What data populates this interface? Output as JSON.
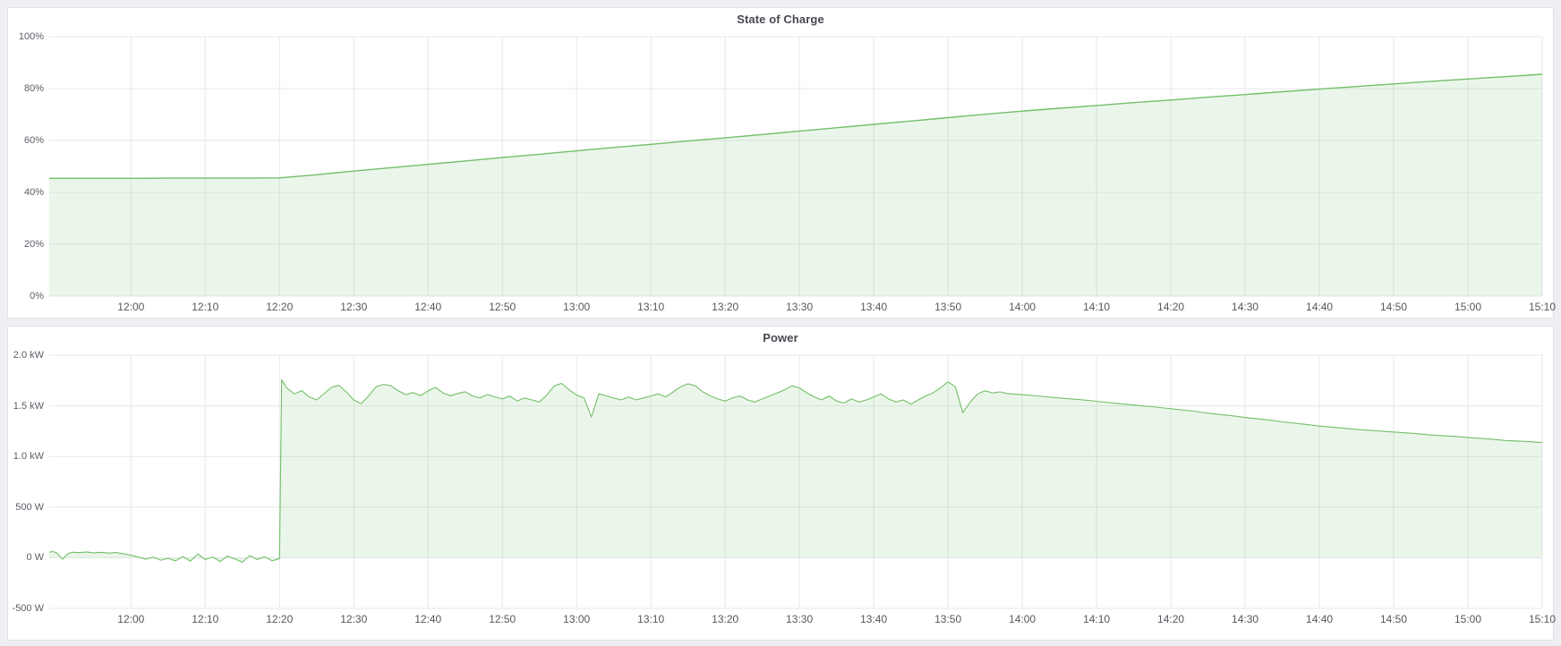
{
  "panels": [
    {
      "title": "State of Charge"
    },
    {
      "title": "Power"
    }
  ],
  "colors": {
    "series_green": "#73bf69",
    "series_fill": "rgba(115,191,105,0.14)",
    "grid": "#e6e7ea",
    "axis_text": "#5a5e66",
    "page_background": "#edeff4",
    "panel_background": "#ffffff"
  },
  "chart_data": [
    {
      "type": "area",
      "title": "State of Charge",
      "xlabel": "",
      "ylabel": "",
      "ylim": [
        0,
        100
      ],
      "x_range_minutes": [
        709,
        910
      ],
      "grid": true,
      "legend": "none",
      "y_ticks": [
        {
          "value": 0,
          "label": "0%"
        },
        {
          "value": 20,
          "label": "20%"
        },
        {
          "value": 40,
          "label": "40%"
        },
        {
          "value": 60,
          "label": "60%"
        },
        {
          "value": 80,
          "label": "80%"
        },
        {
          "value": 100,
          "label": "100%"
        }
      ],
      "x_ticks": [
        {
          "minute": 720,
          "label": "12:00"
        },
        {
          "minute": 730,
          "label": "12:10"
        },
        {
          "minute": 740,
          "label": "12:20"
        },
        {
          "minute": 750,
          "label": "12:30"
        },
        {
          "minute": 760,
          "label": "12:40"
        },
        {
          "minute": 770,
          "label": "12:50"
        },
        {
          "minute": 780,
          "label": "13:00"
        },
        {
          "minute": 790,
          "label": "13:10"
        },
        {
          "minute": 800,
          "label": "13:20"
        },
        {
          "minute": 810,
          "label": "13:30"
        },
        {
          "minute": 820,
          "label": "13:40"
        },
        {
          "minute": 830,
          "label": "13:50"
        },
        {
          "minute": 840,
          "label": "14:00"
        },
        {
          "minute": 850,
          "label": "14:10"
        },
        {
          "minute": 860,
          "label": "14:20"
        },
        {
          "minute": 870,
          "label": "14:30"
        },
        {
          "minute": 880,
          "label": "14:40"
        },
        {
          "minute": 890,
          "label": "14:50"
        },
        {
          "minute": 900,
          "label": "15:00"
        },
        {
          "minute": 910,
          "label": "15:10"
        }
      ],
      "series": [
        {
          "name": "State of Charge",
          "color": "#73bf69",
          "fill": "rgba(115,191,105,0.14)",
          "fill_baseline": 0,
          "points": [
            [
              709,
              45.4
            ],
            [
              715,
              45.4
            ],
            [
              720,
              45.4
            ],
            [
              725,
              45.5
            ],
            [
              730,
              45.5
            ],
            [
              735,
              45.5
            ],
            [
              740,
              45.6
            ],
            [
              745,
              46.8
            ],
            [
              750,
              48.2
            ],
            [
              755,
              49.5
            ],
            [
              760,
              50.8
            ],
            [
              765,
              52.1
            ],
            [
              770,
              53.4
            ],
            [
              775,
              54.7
            ],
            [
              780,
              56.0
            ],
            [
              785,
              57.3
            ],
            [
              790,
              58.5
            ],
            [
              795,
              59.8
            ],
            [
              800,
              61.0
            ],
            [
              805,
              62.3
            ],
            [
              810,
              63.6
            ],
            [
              815,
              64.9
            ],
            [
              820,
              66.2
            ],
            [
              825,
              67.5
            ],
            [
              830,
              68.8
            ],
            [
              835,
              70.1
            ],
            [
              840,
              71.3
            ],
            [
              845,
              72.4
            ],
            [
              850,
              73.5
            ],
            [
              855,
              74.6
            ],
            [
              860,
              75.6
            ],
            [
              865,
              76.7
            ],
            [
              870,
              77.7
            ],
            [
              875,
              78.8
            ],
            [
              880,
              79.8
            ],
            [
              885,
              80.8
            ],
            [
              890,
              81.8
            ],
            [
              895,
              82.8
            ],
            [
              900,
              83.7
            ],
            [
              905,
              84.6
            ],
            [
              910,
              85.5
            ]
          ]
        }
      ]
    },
    {
      "type": "area",
      "title": "Power",
      "xlabel": "",
      "ylabel": "",
      "ylim": [
        -500,
        2000
      ],
      "x_range_minutes": [
        709,
        910
      ],
      "grid": true,
      "legend": "none",
      "y_ticks": [
        {
          "value": -500,
          "label": "-500 W"
        },
        {
          "value": 0,
          "label": "0 W"
        },
        {
          "value": 500,
          "label": "500 W"
        },
        {
          "value": 1000,
          "label": "1.0 kW"
        },
        {
          "value": 1500,
          "label": "1.5 kW"
        },
        {
          "value": 2000,
          "label": "2.0 kW"
        }
      ],
      "x_ticks": [
        {
          "minute": 720,
          "label": "12:00"
        },
        {
          "minute": 730,
          "label": "12:10"
        },
        {
          "minute": 740,
          "label": "12:20"
        },
        {
          "minute": 750,
          "label": "12:30"
        },
        {
          "minute": 760,
          "label": "12:40"
        },
        {
          "minute": 770,
          "label": "12:50"
        },
        {
          "minute": 780,
          "label": "13:00"
        },
        {
          "minute": 790,
          "label": "13:10"
        },
        {
          "minute": 800,
          "label": "13:20"
        },
        {
          "minute": 810,
          "label": "13:30"
        },
        {
          "minute": 820,
          "label": "13:40"
        },
        {
          "minute": 830,
          "label": "13:50"
        },
        {
          "minute": 840,
          "label": "14:00"
        },
        {
          "minute": 850,
          "label": "14:10"
        },
        {
          "minute": 860,
          "label": "14:20"
        },
        {
          "minute": 870,
          "label": "14:30"
        },
        {
          "minute": 880,
          "label": "14:40"
        },
        {
          "minute": 890,
          "label": "14:50"
        },
        {
          "minute": 900,
          "label": "15:00"
        },
        {
          "minute": 910,
          "label": "15:10"
        }
      ],
      "series": [
        {
          "name": "Power",
          "color": "#73bf69",
          "fill": "rgba(115,191,105,0.14)",
          "fill_baseline": 0,
          "points": [
            [
              709,
              55
            ],
            [
              709.5,
              62
            ],
            [
              710,
              48
            ],
            [
              710.8,
              -14
            ],
            [
              711.5,
              40
            ],
            [
              712,
              55
            ],
            [
              713,
              50
            ],
            [
              714,
              57
            ],
            [
              715,
              49
            ],
            [
              716,
              54
            ],
            [
              717,
              46
            ],
            [
              718,
              52
            ],
            [
              719,
              40
            ],
            [
              720,
              26
            ],
            [
              721,
              6
            ],
            [
              722,
              -14
            ],
            [
              723,
              6
            ],
            [
              724,
              -24
            ],
            [
              725,
              -6
            ],
            [
              726,
              -30
            ],
            [
              727,
              12
            ],
            [
              728,
              -34
            ],
            [
              729,
              38
            ],
            [
              730,
              -18
            ],
            [
              731,
              8
            ],
            [
              732,
              -38
            ],
            [
              733,
              18
            ],
            [
              734,
              -12
            ],
            [
              735,
              -44
            ],
            [
              736,
              22
            ],
            [
              737,
              -18
            ],
            [
              738,
              10
            ],
            [
              739,
              -30
            ],
            [
              740,
              -8
            ],
            [
              740.3,
              1758
            ],
            [
              741,
              1675
            ],
            [
              742,
              1618
            ],
            [
              743,
              1650
            ],
            [
              744,
              1588
            ],
            [
              745,
              1558
            ],
            [
              746,
              1620
            ],
            [
              747,
              1682
            ],
            [
              748,
              1702
            ],
            [
              749,
              1638
            ],
            [
              750,
              1558
            ],
            [
              751,
              1522
            ],
            [
              752,
              1598
            ],
            [
              753,
              1688
            ],
            [
              754,
              1712
            ],
            [
              755,
              1698
            ],
            [
              756,
              1648
            ],
            [
              757,
              1610
            ],
            [
              758,
              1632
            ],
            [
              759,
              1602
            ],
            [
              760,
              1648
            ],
            [
              761,
              1682
            ],
            [
              762,
              1628
            ],
            [
              763,
              1600
            ],
            [
              764,
              1622
            ],
            [
              765,
              1640
            ],
            [
              766,
              1598
            ],
            [
              767,
              1578
            ],
            [
              768,
              1612
            ],
            [
              769,
              1588
            ],
            [
              770,
              1568
            ],
            [
              771,
              1598
            ],
            [
              772,
              1548
            ],
            [
              773,
              1578
            ],
            [
              774,
              1558
            ],
            [
              775,
              1538
            ],
            [
              776,
              1608
            ],
            [
              777,
              1698
            ],
            [
              778,
              1722
            ],
            [
              779,
              1658
            ],
            [
              780,
              1608
            ],
            [
              781,
              1578
            ],
            [
              782,
              1390
            ],
            [
              783,
              1618
            ],
            [
              784,
              1598
            ],
            [
              785,
              1578
            ],
            [
              786,
              1558
            ],
            [
              787,
              1588
            ],
            [
              788,
              1558
            ],
            [
              789,
              1578
            ],
            [
              790,
              1598
            ],
            [
              791,
              1618
            ],
            [
              792,
              1588
            ],
            [
              793,
              1638
            ],
            [
              794,
              1688
            ],
            [
              795,
              1718
            ],
            [
              796,
              1698
            ],
            [
              797,
              1638
            ],
            [
              798,
              1598
            ],
            [
              799,
              1568
            ],
            [
              800,
              1548
            ],
            [
              801,
              1578
            ],
            [
              802,
              1598
            ],
            [
              803,
              1558
            ],
            [
              804,
              1538
            ],
            [
              805,
              1568
            ],
            [
              806,
              1598
            ],
            [
              807,
              1628
            ],
            [
              808,
              1658
            ],
            [
              809,
              1698
            ],
            [
              810,
              1678
            ],
            [
              811,
              1628
            ],
            [
              812,
              1588
            ],
            [
              813,
              1558
            ],
            [
              814,
              1598
            ],
            [
              815,
              1548
            ],
            [
              816,
              1528
            ],
            [
              817,
              1568
            ],
            [
              818,
              1538
            ],
            [
              819,
              1558
            ],
            [
              820,
              1588
            ],
            [
              821,
              1618
            ],
            [
              822,
              1568
            ],
            [
              823,
              1538
            ],
            [
              824,
              1558
            ],
            [
              825,
              1518
            ],
            [
              826,
              1558
            ],
            [
              827,
              1598
            ],
            [
              828,
              1628
            ],
            [
              829,
              1678
            ],
            [
              830,
              1738
            ],
            [
              831,
              1688
            ],
            [
              832,
              1432
            ],
            [
              833,
              1538
            ],
            [
              834,
              1618
            ],
            [
              835,
              1648
            ],
            [
              836,
              1628
            ],
            [
              837,
              1638
            ],
            [
              838,
              1622
            ],
            [
              839,
              1615
            ],
            [
              840,
              1610
            ],
            [
              842,
              1598
            ],
            [
              845,
              1578
            ],
            [
              848,
              1560
            ],
            [
              850,
              1545
            ],
            [
              853,
              1522
            ],
            [
              855,
              1508
            ],
            [
              858,
              1488
            ],
            [
              860,
              1472
            ],
            [
              863,
              1448
            ],
            [
              865,
              1428
            ],
            [
              868,
              1405
            ],
            [
              870,
              1385
            ],
            [
              873,
              1362
            ],
            [
              875,
              1342
            ],
            [
              878,
              1318
            ],
            [
              880,
              1300
            ],
            [
              883,
              1282
            ],
            [
              885,
              1268
            ],
            [
              888,
              1252
            ],
            [
              890,
              1242
            ],
            [
              893,
              1226
            ],
            [
              895,
              1212
            ],
            [
              898,
              1200
            ],
            [
              900,
              1188
            ],
            [
              903,
              1172
            ],
            [
              905,
              1158
            ],
            [
              908,
              1148
            ],
            [
              910,
              1138
            ]
          ]
        }
      ]
    }
  ]
}
